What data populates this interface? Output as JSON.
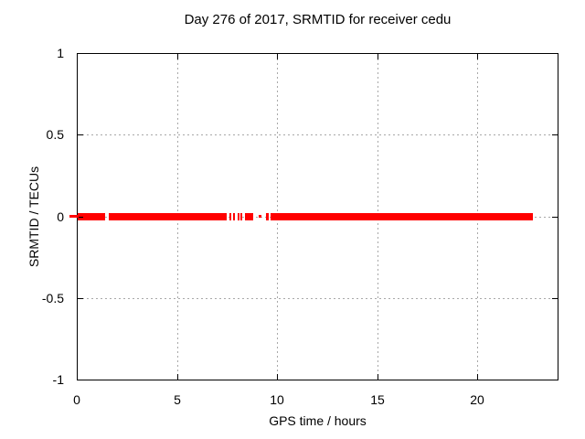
{
  "window": {
    "background_color": "#ffffff"
  },
  "chart_data": {
    "type": "scatter",
    "title": "Day 276 of 2017, SRMTID for receiver cedu",
    "xlabel": "GPS time / hours",
    "ylabel": "SRMTID / TECUs",
    "xlim": [
      0,
      24
    ],
    "ylim": [
      -1,
      1
    ],
    "grid": true,
    "grid_style": "dotted",
    "legend": "none",
    "xticks": [
      {
        "value": 0,
        "label": "0"
      },
      {
        "value": 5,
        "label": "5"
      },
      {
        "value": 10,
        "label": "10"
      },
      {
        "value": 15,
        "label": "15"
      },
      {
        "value": 20,
        "label": "20"
      }
    ],
    "yticks": [
      {
        "value": 1,
        "label": "1"
      },
      {
        "value": 0.5,
        "label": "0.5"
      },
      {
        "value": 0,
        "label": "0"
      },
      {
        "value": -0.5,
        "label": "-0.5"
      },
      {
        "value": -1,
        "label": "-1"
      }
    ],
    "series": [
      {
        "name": "SRMTID",
        "color": "#ff0000",
        "y_value": 0,
        "marker": "thick-band-of-points",
        "segments_hours": [
          {
            "t0": 0.05,
            "t1": 1.41
          },
          {
            "t0": 1.6,
            "t1": 7.48
          },
          {
            "t0": 7.62,
            "t1": 7.71
          },
          {
            "t0": 7.8,
            "t1": 7.89
          },
          {
            "t0": 8.03,
            "t1": 8.12
          },
          {
            "t0": 8.17,
            "t1": 8.26
          },
          {
            "t0": 8.4,
            "t1": 8.81
          },
          {
            "t0": 9.08,
            "t1": 9.22,
            "thin": true
          },
          {
            "t0": 9.45,
            "t1": 9.58
          },
          {
            "t0": 9.67,
            "t1": 22.77
          }
        ]
      }
    ]
  },
  "colors": {
    "series_red": "#ff0000",
    "grid_gray": "#a8a8a8",
    "axis_black": "#000000",
    "text": "#000000",
    "background": "#ffffff"
  }
}
